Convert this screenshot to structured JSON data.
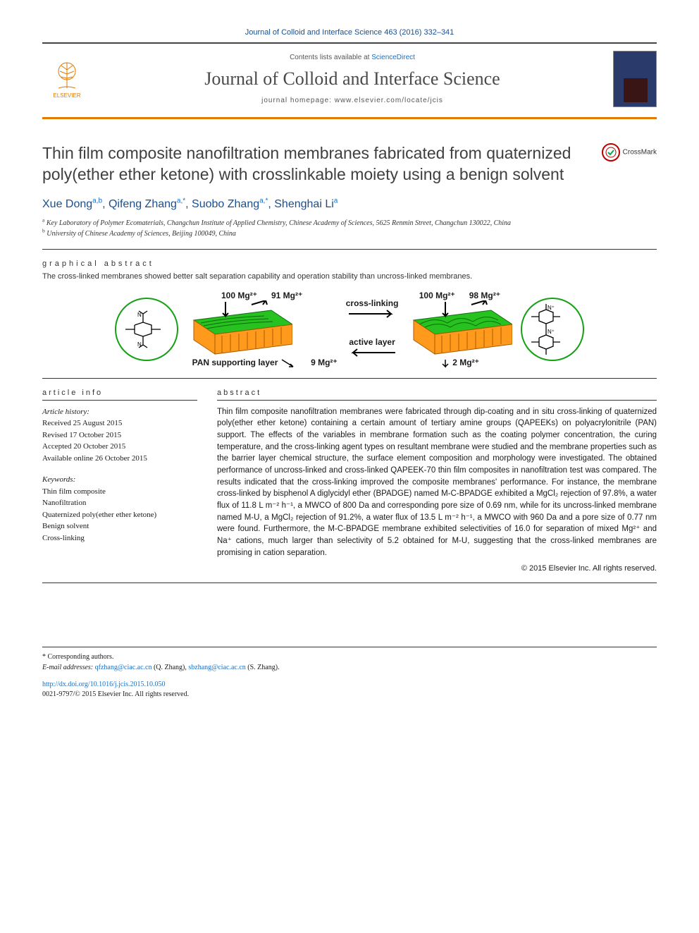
{
  "journal_ref": "Journal of Colloid and Interface Science 463 (2016) 332–341",
  "banner": {
    "contents_prefix": "Contents lists available at ",
    "contents_link": "ScienceDirect",
    "journal_name": "Journal of Colloid and Interface Science",
    "homepage_label": "journal homepage: ",
    "homepage_url": "www.elsevier.com/locate/jcis",
    "publisher": "ELSEVIER"
  },
  "crossmark_label": "CrossMark",
  "title": "Thin film composite nanofiltration membranes fabricated from quaternized poly(ether ether ketone) with crosslinkable moiety using a benign solvent",
  "authors_html": "Xue Dong<sup>a,b</sup>, Qifeng Zhang<sup>a,*</sup>, Suobo Zhang<sup>a,*</sup>, Shenghai Li<sup>a</sup>",
  "affiliations": {
    "a": "Key Laboratory of Polymer Ecomaterials, Changchun Institute of Applied Chemistry, Chinese Academy of Sciences, 5625 Renmin Street, Changchun 130022, China",
    "b": "University of Chinese Academy of Sciences, Beijing 100049, China"
  },
  "graphical_abstract": {
    "heading": "graphical abstract",
    "caption": "The cross-linked membranes showed better salt separation capability and operation stability than uncross-linked membranes.",
    "left_in": "100 Mg²⁺",
    "left_reject": "91 Mg²⁺",
    "left_pass": "9 Mg²⁺",
    "right_in": "100 Mg²⁺",
    "right_reject": "98 Mg²⁺",
    "right_pass": "2 Mg²⁺",
    "arrow_top": "cross-linking",
    "arrow_bottom": "active layer",
    "support_label": "PAN supporting layer",
    "colors": {
      "active_layer": "#27c21f",
      "support_layer": "#ff9a1c",
      "circle_border": "#15a015",
      "arrow": "#000000"
    }
  },
  "article_info": {
    "heading": "article info",
    "history_label": "Article history:",
    "history": [
      "Received 25 August 2015",
      "Revised 17 October 2015",
      "Accepted 20 October 2015",
      "Available online 26 October 2015"
    ],
    "keywords_label": "Keywords:",
    "keywords": [
      "Thin film composite",
      "Nanofiltration",
      "Quaternized poly(ether ether ketone)",
      "Benign solvent",
      "Cross-linking"
    ]
  },
  "abstract": {
    "heading": "abstract",
    "text": "Thin film composite nanofiltration membranes were fabricated through dip-coating and in situ cross-linking of quaternized poly(ether ether ketone) containing a certain amount of tertiary amine groups (QAPEEKs) on polyacrylonitrile (PAN) support. The effects of the variables in membrane formation such as the coating polymer concentration, the curing temperature, and the cross-linking agent types on resultant membrane were studied and the membrane properties such as the barrier layer chemical structure, the surface element composition and morphology were investigated. The obtained performance of uncross-linked and cross-linked QAPEEK-70 thin film composites in nanofiltration test was compared. The results indicated that the cross-linking improved the composite membranes' performance. For instance, the membrane cross-linked by bisphenol A diglycidyl ether (BPADGE) named M-C-BPADGE exhibited a MgCl₂ rejection of 97.8%, a water flux of 11.8 L m⁻² h⁻¹, a MWCO of 800 Da and corresponding pore size of 0.69 nm, while for its uncross-linked membrane named M-U, a MgCl₂ rejection of 91.2%, a water flux of 13.5 L m⁻² h⁻¹, a MWCO with 960 Da and a pore size of 0.77 nm were found. Furthermore, the M-C-BPADGE membrane exhibited selectivities of 16.0 for separation of mixed Mg²⁺ and Na⁺ cations, much larger than selectivity of 5.2 obtained for M-U, suggesting that the cross-linked membranes are promising in cation separation.",
    "copyright": "© 2015 Elsevier Inc. All rights reserved."
  },
  "footer": {
    "corresponding_label": "* Corresponding authors.",
    "email_label": "E-mail addresses: ",
    "emails": [
      {
        "addr": "qfzhang@ciac.ac.cn",
        "who": "(Q. Zhang)"
      },
      {
        "addr": "sbzhang@ciac.ac.cn",
        "who": "(S. Zhang)"
      }
    ],
    "doi": "http://dx.doi.org/10.1016/j.jcis.2015.10.050",
    "issn_line": "0021-9797/© 2015 Elsevier Inc. All rights reserved."
  }
}
